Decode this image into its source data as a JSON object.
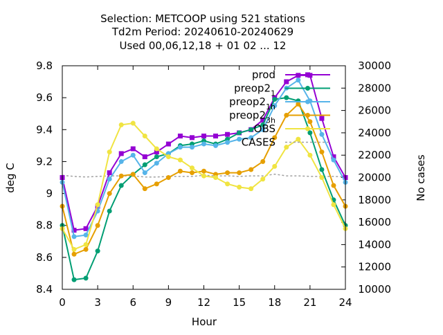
{
  "chart_data": {
    "type": "line",
    "title_lines": [
      "Selection: METCOOP using   521 stations",
      "Td2m   Period: 20240610-20240629",
      "Used  00,06,12,18 + 01 02 ... 12"
    ],
    "xlabel": "Hour",
    "ylabel": "deg C",
    "y2label": "No cases",
    "xlim": [
      0,
      24
    ],
    "ylim": [
      8.4,
      9.8
    ],
    "y2lim": [
      10000,
      30000
    ],
    "x_ticks": [
      "0",
      "3",
      "6",
      "9",
      "12",
      "15",
      "18",
      "21",
      "24"
    ],
    "y_ticks": [
      "8.4",
      "8.6",
      "8.8",
      "9",
      "9.2",
      "9.4",
      "9.6",
      "9.8"
    ],
    "y2_ticks": [
      "10000",
      "12000",
      "14000",
      "16000",
      "18000",
      "20000",
      "22000",
      "24000",
      "26000",
      "28000",
      "30000"
    ],
    "legend_position": "top-right",
    "x": [
      0,
      1,
      2,
      3,
      4,
      5,
      6,
      7,
      8,
      9,
      10,
      11,
      12,
      13,
      14,
      15,
      16,
      17,
      18,
      19,
      20,
      21,
      22,
      23,
      24
    ],
    "series": [
      {
        "name": "prod",
        "color": "#9400d3",
        "marker": "square",
        "values": [
          9.1,
          8.77,
          8.78,
          8.92,
          9.13,
          9.25,
          9.28,
          9.23,
          9.26,
          9.31,
          9.36,
          9.35,
          9.36,
          9.36,
          9.37,
          9.38,
          9.4,
          9.46,
          9.6,
          9.7,
          9.74,
          9.74,
          9.47,
          9.23,
          9.1
        ]
      },
      {
        "name": "preop2_1",
        "color": "#009e73",
        "marker": "circle",
        "values": [
          8.8,
          8.46,
          8.47,
          8.64,
          8.89,
          9.05,
          9.12,
          9.18,
          9.23,
          9.25,
          9.3,
          9.31,
          9.33,
          9.31,
          9.34,
          9.38,
          9.4,
          9.43,
          9.59,
          9.6,
          9.58,
          9.38,
          9.15,
          8.96,
          8.8
        ]
      },
      {
        "name": "preop2_1h",
        "color": "#56b4e9",
        "marker": "circle",
        "values": [
          9.07,
          8.73,
          8.74,
          8.89,
          9.09,
          9.2,
          9.24,
          9.13,
          9.19,
          9.25,
          9.29,
          9.29,
          9.31,
          9.3,
          9.32,
          9.34,
          9.35,
          9.4,
          9.55,
          9.66,
          9.71,
          9.58,
          9.37,
          9.21,
          9.07
        ]
      },
      {
        "name": "preop2_3h",
        "color": "#e69f00",
        "marker": "circle",
        "values": [
          8.92,
          8.62,
          8.65,
          8.8,
          9.0,
          9.11,
          9.12,
          9.03,
          9.06,
          9.1,
          9.14,
          9.13,
          9.14,
          9.12,
          9.13,
          9.13,
          9.15,
          9.2,
          9.35,
          9.49,
          9.56,
          9.45,
          9.26,
          9.05,
          8.92
        ]
      },
      {
        "name": "OBS",
        "color": "#f0e442",
        "marker": "circle",
        "values": [
          8.78,
          8.65,
          8.68,
          8.93,
          9.26,
          9.43,
          9.44,
          9.36,
          9.28,
          9.23,
          9.21,
          9.16,
          9.11,
          9.1,
          9.06,
          9.04,
          9.03,
          9.09,
          9.17,
          9.29,
          9.34,
          9.24,
          9.1,
          8.93,
          8.78
        ]
      },
      {
        "name": "CASES",
        "color": "#a0a0a0",
        "marker": "none",
        "axis": "y2",
        "values": [
          20200,
          20100,
          20050,
          20100,
          20150,
          20150,
          20150,
          20050,
          20050,
          20100,
          20100,
          20100,
          20200,
          20150,
          20150,
          20100,
          20150,
          20150,
          20300,
          20150,
          20150,
          20100,
          20100,
          20100,
          20050
        ]
      }
    ]
  }
}
